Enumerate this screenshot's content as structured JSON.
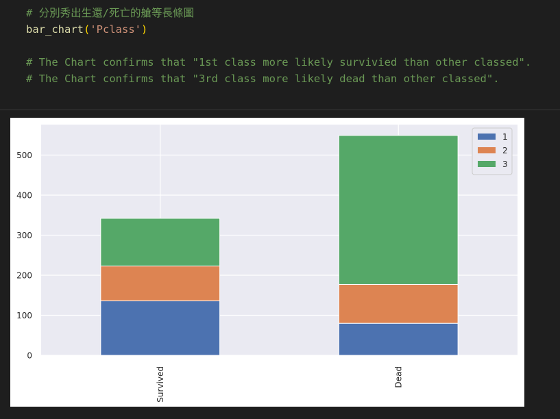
{
  "code": {
    "line1_comment": "# 分別秀出生還/死亡的艙等長條圖",
    "call_fn": "bar_chart",
    "call_open": "(",
    "call_arg": "'Pclass'",
    "call_close": ")",
    "line3_comment": "# The Chart confirms that \"1st class more likely survivied than other classed\".",
    "line4_comment": "# The Chart confirms that \"3rd class more likely dead than other classed\"."
  },
  "colors": {
    "series_1": "#4c72b0",
    "series_2": "#dd8452",
    "series_3": "#55a868",
    "plot_bg": "#eaeaf2",
    "grid": "#ffffff",
    "text": "#262626"
  },
  "chart_data": {
    "type": "bar",
    "stacked": true,
    "categories": [
      "Survived",
      "Dead"
    ],
    "series": [
      {
        "name": "1",
        "values": [
          136,
          80
        ]
      },
      {
        "name": "2",
        "values": [
          87,
          97
        ]
      },
      {
        "name": "3",
        "values": [
          119,
          372
        ]
      }
    ],
    "yticks": [
      0,
      100,
      200,
      300,
      400,
      500
    ],
    "ylim": [
      0,
      576
    ],
    "xlabel_rotation": "vertical",
    "legend_position": "top-right",
    "grid": true
  }
}
